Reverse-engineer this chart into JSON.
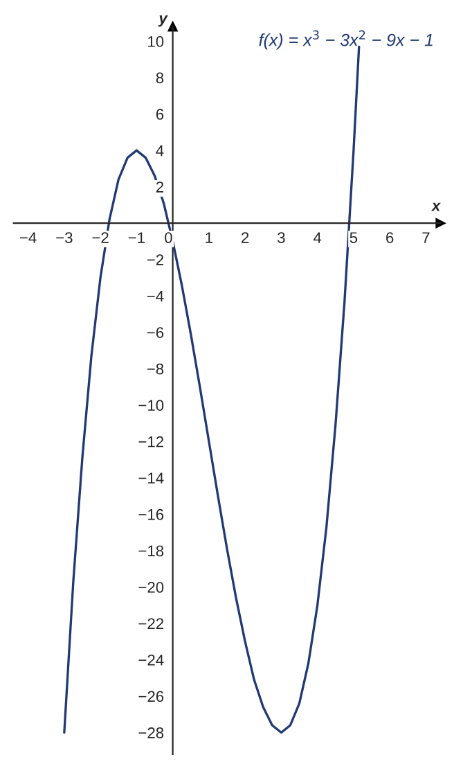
{
  "chart_data": {
    "type": "line",
    "xlabel": "x",
    "ylabel": "y",
    "xlim": [
      -4.4,
      7.4
    ],
    "ylim": [
      -29.2,
      10.8
    ],
    "xticks": [
      {
        "value": -4,
        "label": "−4"
      },
      {
        "value": -3,
        "label": "−3"
      },
      {
        "value": -2,
        "label": "−2"
      },
      {
        "value": -1,
        "label": "−1"
      },
      0,
      1,
      2,
      3,
      4,
      5,
      6,
      7
    ],
    "yticks": [
      {
        "value": -28,
        "label": "−28"
      },
      {
        "value": -26,
        "label": "−26"
      },
      {
        "value": -24,
        "label": "−24"
      },
      {
        "value": -22,
        "label": "−22"
      },
      {
        "value": -20,
        "label": "−20"
      },
      {
        "value": -18,
        "label": "−18"
      },
      {
        "value": -16,
        "label": "−16"
      },
      {
        "value": -14,
        "label": "−14"
      },
      {
        "value": -12,
        "label": "−12"
      },
      {
        "value": -10,
        "label": "−10"
      },
      {
        "value": -8,
        "label": "−8"
      },
      {
        "value": -6,
        "label": "−6"
      },
      {
        "value": -4,
        "label": "−4"
      },
      {
        "value": -2,
        "label": "−2"
      },
      2,
      4,
      6,
      8,
      10
    ],
    "grid": false,
    "legend": false,
    "series": [
      {
        "name": "f(x) = x$^{3}$ − 3x$^{2}$ − 9x − 1",
        "color": "#213a75",
        "x": [
          -3,
          -2.75,
          -2.5,
          -2.25,
          -2,
          -1.75,
          -1.5,
          -1.25,
          -1,
          -0.75,
          -0.5,
          -0.25,
          0,
          0.25,
          0.5,
          0.75,
          1,
          1.25,
          1.5,
          1.75,
          2,
          2.25,
          2.5,
          2.75,
          3,
          3.25,
          3.5,
          3.75,
          4,
          4.25,
          4.5,
          4.75,
          5,
          5.15
        ],
        "values": [
          -28,
          -19.7,
          -12.9,
          -7.3,
          -3,
          0.2,
          2.4,
          3.6,
          4,
          3.6,
          2.6,
          1.1,
          -1,
          -3.4,
          -6.1,
          -9,
          -12,
          -15,
          -17.9,
          -20.6,
          -23,
          -25.1,
          -26.6,
          -27.6,
          -28,
          -27.6,
          -26.4,
          -24.2,
          -21,
          -16.7,
          -11.1,
          -4.3,
          4,
          9.7
        ]
      }
    ]
  }
}
